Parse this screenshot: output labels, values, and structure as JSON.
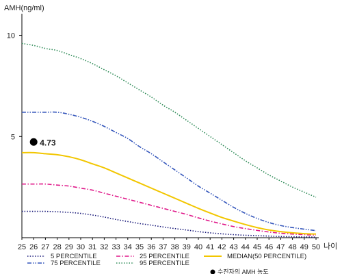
{
  "chart_data": {
    "type": "line",
    "title": "",
    "ylabel": "AMH(ng/ml)",
    "xlabel": "나이",
    "xlim": [
      25,
      50
    ],
    "ylim": [
      0,
      11
    ],
    "x_ticks": [
      25,
      26,
      27,
      28,
      29,
      30,
      31,
      32,
      33,
      34,
      35,
      36,
      37,
      38,
      39,
      40,
      41,
      42,
      43,
      44,
      45,
      46,
      47,
      48,
      49,
      50
    ],
    "y_ticks": [
      5,
      10
    ],
    "grid": false,
    "legend_position": "bottom",
    "x": [
      25,
      26,
      27,
      28,
      29,
      30,
      31,
      32,
      33,
      34,
      35,
      36,
      37,
      38,
      39,
      40,
      41,
      42,
      43,
      44,
      45,
      46,
      47,
      48,
      49,
      50
    ],
    "series": [
      {
        "name": "5 PERCENTILE",
        "color": "#1a1a7a",
        "style": "dotted",
        "values": [
          1.3,
          1.3,
          1.3,
          1.28,
          1.25,
          1.2,
          1.12,
          1.02,
          0.9,
          0.8,
          0.7,
          0.62,
          0.53,
          0.45,
          0.38,
          0.3,
          0.24,
          0.19,
          0.15,
          0.12,
          0.1,
          0.08,
          0.06,
          0.05,
          0.04,
          0.03
        ]
      },
      {
        "name": "25 PERCENTILE",
        "color": "#e0198a",
        "style": "dashdot",
        "values": [
          2.65,
          2.65,
          2.65,
          2.6,
          2.55,
          2.45,
          2.35,
          2.2,
          2.05,
          1.9,
          1.75,
          1.6,
          1.45,
          1.3,
          1.15,
          0.98,
          0.82,
          0.68,
          0.55,
          0.45,
          0.36,
          0.28,
          0.22,
          0.18,
          0.15,
          0.12
        ]
      },
      {
        "name": "MEDIAN(50 PERCENTILE)",
        "color": "#f2c600",
        "style": "solid",
        "values": [
          4.2,
          4.2,
          4.15,
          4.1,
          4.0,
          3.85,
          3.65,
          3.45,
          3.2,
          2.95,
          2.7,
          2.45,
          2.2,
          1.95,
          1.7,
          1.45,
          1.22,
          1.0,
          0.82,
          0.65,
          0.5,
          0.38,
          0.3,
          0.24,
          0.2,
          0.18
        ]
      },
      {
        "name": "75 PERCENTILE",
        "color": "#3355bb",
        "style": "dashdotdot",
        "values": [
          6.2,
          6.2,
          6.2,
          6.2,
          6.1,
          5.95,
          5.75,
          5.5,
          5.2,
          4.9,
          4.5,
          4.15,
          3.75,
          3.35,
          2.95,
          2.55,
          2.2,
          1.85,
          1.5,
          1.2,
          0.95,
          0.75,
          0.6,
          0.5,
          0.42,
          0.35
        ]
      },
      {
        "name": "95 PERCENTILE",
        "color": "#2e8b57",
        "style": "dotted",
        "values": [
          9.6,
          9.5,
          9.35,
          9.25,
          9.05,
          8.85,
          8.6,
          8.3,
          8.0,
          7.65,
          7.3,
          6.95,
          6.55,
          6.2,
          5.8,
          5.4,
          5.0,
          4.6,
          4.2,
          3.8,
          3.45,
          3.1,
          2.8,
          2.5,
          2.25,
          2.0
        ]
      }
    ],
    "marker": {
      "name": "수진자의 AMH 농도",
      "x": 26,
      "y": 4.73,
      "label": "4.73",
      "color": "#000000"
    }
  }
}
